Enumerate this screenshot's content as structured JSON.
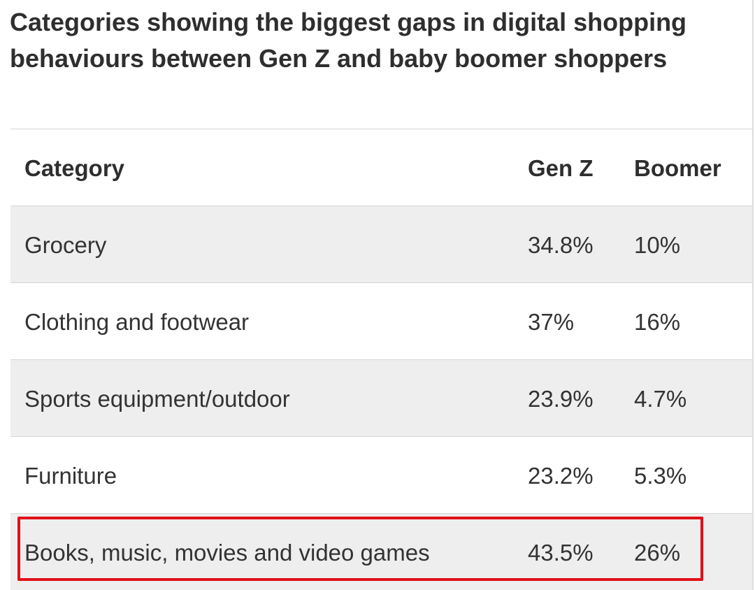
{
  "title": "Categories showing the biggest gaps in digital shopping behaviours between Gen Z and baby boomer shoppers",
  "colors": {
    "highlight": "#e0101a",
    "shaded_row": "#eeeeee",
    "rule": "#d6d6d6"
  },
  "chart_data": {
    "type": "table",
    "title": "Categories showing the biggest gaps in digital shopping behaviours between Gen Z and baby boomer shoppers",
    "columns": [
      "Category",
      "Gen Z",
      "Boomer"
    ],
    "rows": [
      {
        "category": "Grocery",
        "gen_z": "34.8%",
        "boomer": "10%"
      },
      {
        "category": "Clothing and footwear",
        "gen_z": "37%",
        "boomer": "16%"
      },
      {
        "category": "Sports equipment/outdoor",
        "gen_z": "23.9%",
        "boomer": "4.7%"
      },
      {
        "category": "Furniture",
        "gen_z": "23.2%",
        "boomer": "5.3%"
      },
      {
        "category": "Books, music, movies and video games",
        "gen_z": "43.5%",
        "boomer": "26%"
      }
    ],
    "highlighted_row": "Books, music, movies and video games"
  }
}
